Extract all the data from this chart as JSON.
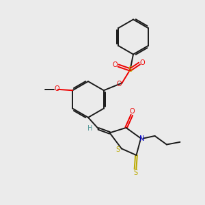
{
  "background_color": "#ebebeb",
  "bond_color": "#1a1a1a",
  "o_color": "#ee0000",
  "n_color": "#0000cc",
  "s_color": "#bbaa00",
  "h_color": "#559999",
  "lw": 1.4,
  "xlim": [
    0,
    10
  ],
  "ylim": [
    0,
    10
  ]
}
